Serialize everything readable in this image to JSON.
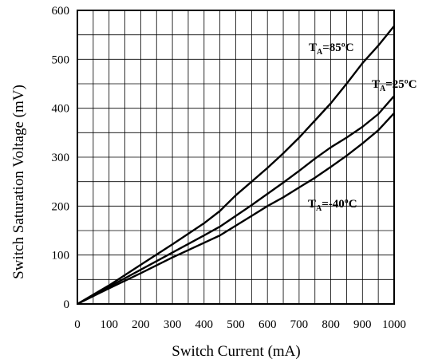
{
  "chart_data": {
    "type": "line",
    "xlabel": "Switch Current (mA)",
    "ylabel": "Switch Saturation Voltage (mV)",
    "xlim": [
      0,
      1000
    ],
    "ylim": [
      0,
      600
    ],
    "x_ticks": [
      "0",
      "100",
      "200",
      "300",
      "400",
      "500",
      "600",
      "700",
      "800",
      "900",
      "1000"
    ],
    "y_ticks": [
      "0",
      "100",
      "200",
      "300",
      "400",
      "500",
      "600"
    ],
    "grid": true,
    "series": [
      {
        "name_main": "T",
        "name_sub": "A",
        "name_rest": "=85ºC",
        "color": "#000000",
        "x": [
          0,
          100,
          200,
          300,
          400,
          450,
          500,
          550,
          600,
          650,
          700,
          750,
          800,
          850,
          900,
          950,
          1000
        ],
        "y": [
          0,
          38,
          80,
          122,
          165,
          190,
          222,
          250,
          278,
          308,
          340,
          375,
          410,
          450,
          492,
          528,
          568
        ]
      },
      {
        "name_main": "T",
        "name_sub": "A",
        "name_rest": "=25ºC",
        "color": "#000000",
        "x": [
          0,
          100,
          200,
          300,
          400,
          450,
          500,
          550,
          600,
          650,
          700,
          750,
          800,
          850,
          900,
          950,
          1000
        ],
        "y": [
          0,
          35,
          70,
          105,
          140,
          158,
          180,
          202,
          225,
          248,
          272,
          297,
          320,
          340,
          362,
          388,
          425
        ]
      },
      {
        "name_main": "T",
        "name_sub": "A",
        "name_rest": "=-40ºC",
        "color": "#000000",
        "x": [
          0,
          100,
          200,
          300,
          400,
          450,
          500,
          550,
          600,
          650,
          700,
          750,
          800,
          850,
          900,
          950,
          1000
        ],
        "y": [
          0,
          32,
          63,
          95,
          125,
          140,
          160,
          180,
          200,
          218,
          238,
          258,
          280,
          303,
          328,
          355,
          390
        ]
      }
    ]
  }
}
